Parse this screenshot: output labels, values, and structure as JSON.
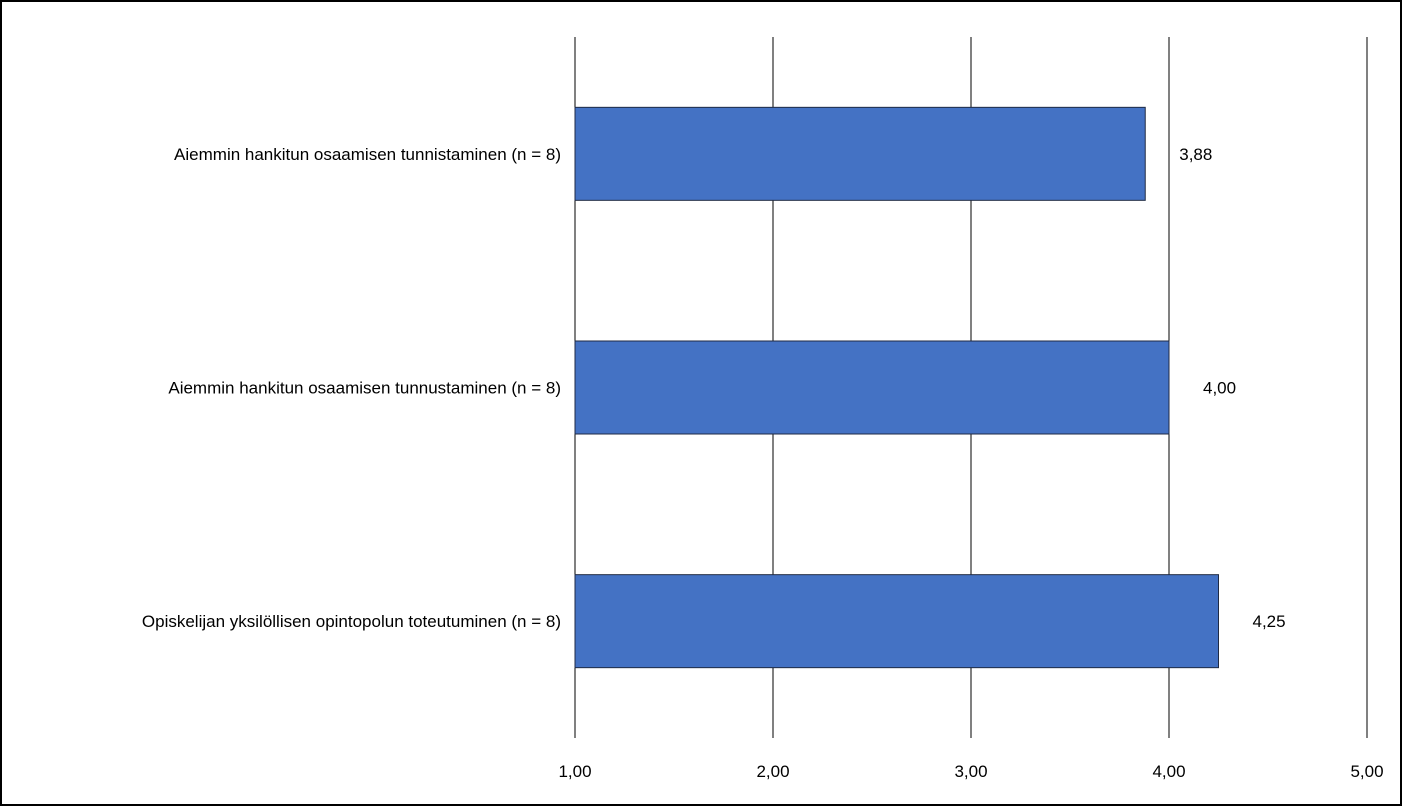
{
  "chart_data": {
    "type": "bar",
    "orientation": "horizontal",
    "title": "",
    "xlabel": "",
    "ylabel": "",
    "categories": [
      "Aiemmin hankitun osaamisen tunnistaminen (n = 8)",
      "Aiemmin hankitun osaamisen tunnustaminen (n = 8)",
      "Opiskelijan yksilöllisen opintopolun toteutuminen (n = 8)"
    ],
    "values": [
      3.88,
      4.0,
      4.25
    ],
    "value_labels": [
      "3,88",
      "4,00",
      "4,25"
    ],
    "xlim": [
      1.0,
      5.0
    ],
    "x_ticks": [
      1,
      2,
      3,
      4,
      5
    ],
    "x_tick_labels": [
      "1,00",
      "2,00",
      "3,00",
      "4,00",
      "5,00"
    ],
    "grid": "vertical",
    "legend": "none",
    "colors": {
      "bar": "#4472C4",
      "bar_border": "#1f2a44",
      "grid": "#000000",
      "frame": "#000000"
    }
  }
}
